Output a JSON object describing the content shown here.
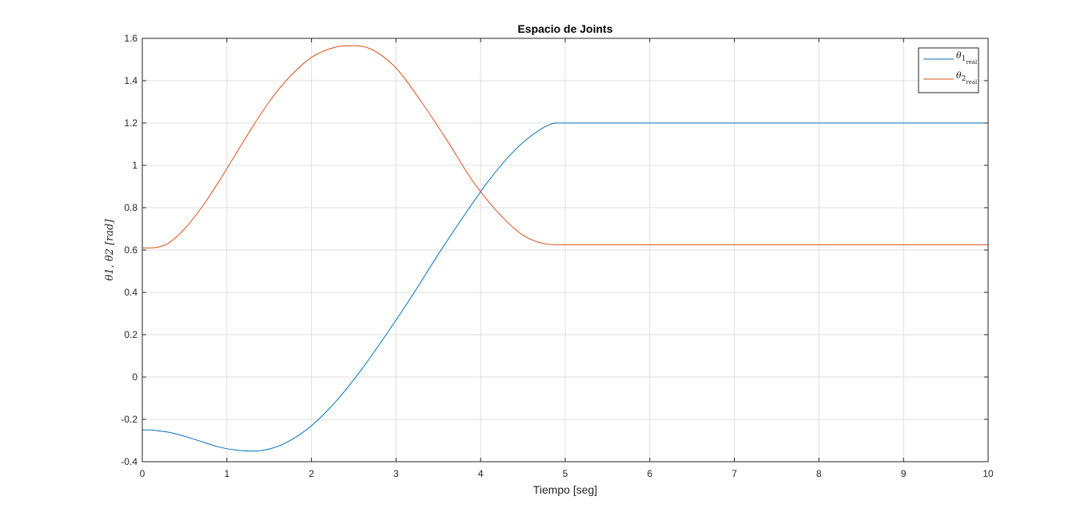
{
  "chart_data": {
    "type": "line",
    "title": "Espacio de Joints",
    "xlabel": "Tiempo [seg]",
    "ylabel": "θ1, θ2 [rad]",
    "xlim": [
      0,
      10
    ],
    "ylim": [
      -0.4,
      1.6
    ],
    "xticks": [
      "0",
      "1",
      "2",
      "3",
      "4",
      "5",
      "6",
      "7",
      "8",
      "9",
      "10"
    ],
    "yticks": [
      "-0.4",
      "-0.2",
      "0",
      "0.2",
      "0.4",
      "0.6",
      "0.8",
      "1",
      "1.2",
      "1.4",
      "1.6"
    ],
    "grid": true,
    "legend_position": "top-right",
    "series": [
      {
        "name": "θ 1 real",
        "legend_symbol": "θ",
        "legend_sub": "1",
        "legend_subsub": "real",
        "color": "#0072BD",
        "x": [
          0,
          0.1,
          0.2,
          0.3,
          0.5,
          0.7,
          0.9,
          1.1,
          1.3,
          1.5,
          1.7,
          2.0,
          2.3,
          2.6,
          2.9,
          3.2,
          3.5,
          3.8,
          4.1,
          4.4,
          4.6,
          4.8,
          4.9,
          5.0,
          6.0,
          7.0,
          8.0,
          9.0,
          10.0
        ],
        "y": [
          -0.25,
          -0.25,
          -0.255,
          -0.26,
          -0.28,
          -0.305,
          -0.33,
          -0.345,
          -0.35,
          -0.34,
          -0.31,
          -0.23,
          -0.11,
          0.04,
          0.21,
          0.39,
          0.58,
          0.76,
          0.93,
          1.07,
          1.14,
          1.19,
          1.2,
          1.2,
          1.2,
          1.2,
          1.2,
          1.2,
          1.2
        ]
      },
      {
        "name": "θ 2 real",
        "legend_symbol": "θ",
        "legend_sub": "2",
        "legend_subsub": "real",
        "color": "#D95319",
        "x": [
          0,
          0.1,
          0.2,
          0.3,
          0.5,
          0.7,
          0.9,
          1.1,
          1.3,
          1.5,
          1.7,
          2.0,
          2.3,
          2.5,
          2.7,
          3.0,
          3.3,
          3.6,
          3.9,
          4.2,
          4.5,
          4.7,
          4.9,
          5.0,
          6.0,
          7.0,
          8.0,
          9.0,
          10.0
        ],
        "y": [
          0.61,
          0.61,
          0.615,
          0.63,
          0.7,
          0.8,
          0.92,
          1.05,
          1.18,
          1.3,
          1.4,
          1.51,
          1.56,
          1.565,
          1.55,
          1.46,
          1.3,
          1.12,
          0.93,
          0.78,
          0.67,
          0.635,
          0.625,
          0.625,
          0.625,
          0.625,
          0.625,
          0.625,
          0.625
        ]
      }
    ]
  }
}
